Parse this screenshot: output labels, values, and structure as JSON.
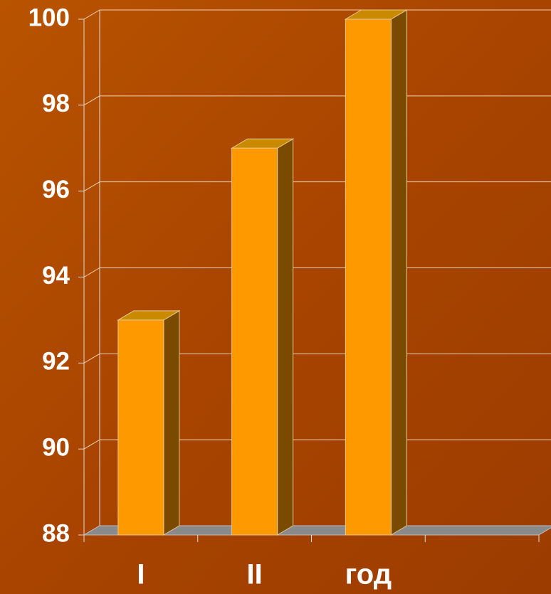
{
  "chart_data": {
    "type": "bar3d",
    "categories": [
      "I",
      "II",
      "год",
      null
    ],
    "values": [
      93,
      97,
      100,
      null
    ],
    "color": "#ff9900",
    "ylim": [
      88,
      100
    ],
    "yticks": [
      88,
      90,
      92,
      94,
      96,
      98,
      100
    ],
    "grid": true
  }
}
